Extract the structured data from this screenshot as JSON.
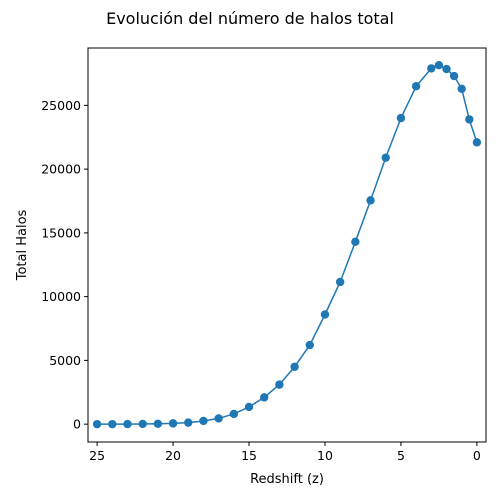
{
  "chart_data": {
    "type": "line",
    "title": "Evolución del número de halos total",
    "xlabel": "Redshift (z)",
    "ylabel": "Total Halos",
    "xlim": [
      25.6,
      -0.6
    ],
    "ylim": [
      -1400,
      29500
    ],
    "x_inverted": true,
    "grid": false,
    "marker": "circle",
    "color": "#1f77b4",
    "xticks": [
      25,
      20,
      15,
      10,
      5,
      0
    ],
    "yticks": [
      0,
      5000,
      10000,
      15000,
      20000,
      25000
    ],
    "series": [
      {
        "x": [
          25,
          24,
          23,
          22,
          21,
          20,
          19,
          18,
          17,
          16,
          15,
          14,
          13,
          12,
          11,
          10,
          9,
          8,
          7,
          6,
          5,
          4,
          3,
          2.5,
          2,
          1.5,
          1,
          0.5,
          0
        ],
        "y": [
          0,
          0,
          5,
          15,
          30,
          60,
          120,
          250,
          450,
          800,
          1350,
          2100,
          3100,
          4500,
          6200,
          8600,
          11150,
          14300,
          17550,
          20900,
          24000,
          26500,
          27900,
          28150,
          27850,
          27300,
          26300,
          23900,
          22100
        ]
      }
    ]
  }
}
